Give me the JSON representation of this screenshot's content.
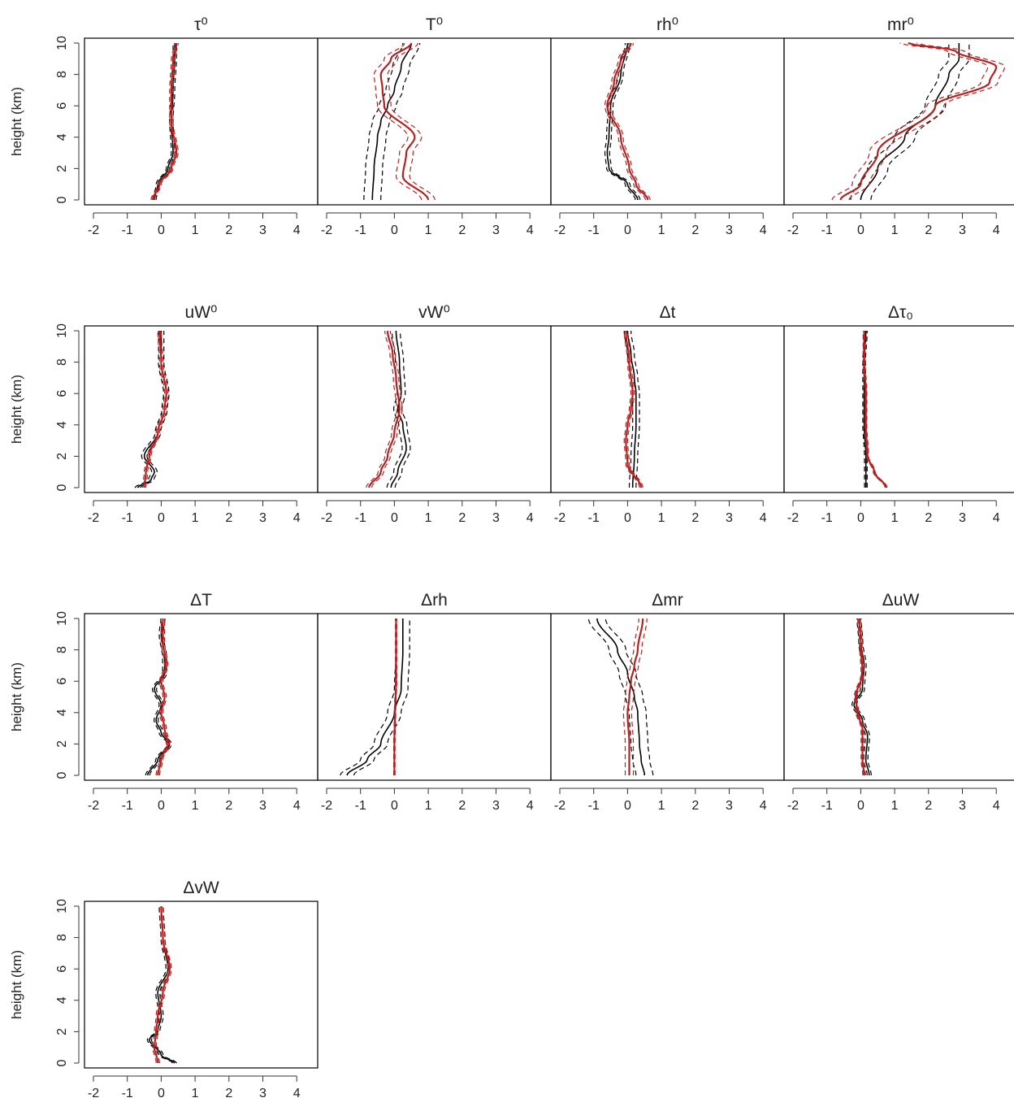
{
  "figure": {
    "ylabel": "height (km)",
    "x_tick_labels": [
      "-2",
      "-1",
      "0",
      "1",
      "2",
      "3",
      "4"
    ],
    "y_tick_labels": [
      "0",
      "2",
      "4",
      "6",
      "8",
      "10"
    ]
  },
  "colors": {
    "model_a": "#000000",
    "model_b": "#b22222",
    "frame": "#000000"
  },
  "chart_data": [
    {
      "type": "line",
      "title": "τ⁰",
      "xlim": [
        -2,
        4.5
      ],
      "ylim": [
        0,
        10
      ],
      "series": [
        {
          "color": "black",
          "x": [
            -0.2,
            -0.1,
            0.2,
            0.35,
            0.3,
            0.35,
            0.4,
            0.4
          ],
          "y": [
            0,
            1,
            2,
            3,
            5,
            7,
            9,
            10
          ],
          "band": 0.05
        },
        {
          "color": "red",
          "x": [
            -0.25,
            -0.05,
            0.3,
            0.45,
            0.3,
            0.3,
            0.35,
            0.45
          ],
          "y": [
            0,
            1,
            2,
            3,
            5,
            7,
            9,
            10
          ],
          "band": 0.05
        }
      ]
    },
    {
      "type": "line",
      "title": "T⁰",
      "xlim": [
        -2,
        4.5
      ],
      "ylim": [
        0,
        10
      ],
      "series": [
        {
          "color": "black",
          "x": [
            -0.65,
            -0.6,
            -0.5,
            -0.4,
            -0.2,
            0.0,
            0.2,
            0.5
          ],
          "y": [
            0,
            2,
            4,
            5,
            6,
            7,
            8.5,
            10
          ],
          "band": 0.25
        },
        {
          "color": "red",
          "x": [
            1.0,
            0.25,
            0.35,
            0.6,
            -0.3,
            -0.35,
            -0.4,
            -0.1,
            0.5
          ],
          "y": [
            0,
            1.5,
            3,
            4,
            6,
            7,
            8,
            9,
            10
          ],
          "band": 0.2
        }
      ]
    },
    {
      "type": "line",
      "title": "rh⁰",
      "xlim": [
        -2,
        4.5
      ],
      "ylim": [
        0,
        10
      ],
      "series": [
        {
          "color": "black",
          "x": [
            0.3,
            0.0,
            -0.55,
            -0.6,
            -0.55,
            -0.5,
            -0.2,
            0.0
          ],
          "y": [
            0,
            1,
            2,
            3,
            4,
            6,
            8,
            10
          ],
          "band": 0.07
        },
        {
          "color": "red",
          "x": [
            0.6,
            0.25,
            0.05,
            -0.2,
            -0.6,
            -0.4,
            -0.2,
            0.1
          ],
          "y": [
            0,
            1,
            2,
            4,
            6,
            7.5,
            9,
            10
          ],
          "band": 0.07
        }
      ]
    },
    {
      "type": "line",
      "title": "mr⁰",
      "xlim": [
        -2,
        4.5
      ],
      "ylim": [
        0,
        10
      ],
      "series": [
        {
          "color": "black",
          "x": [
            0.0,
            0.5,
            1.3,
            2.2,
            2.6,
            2.9,
            2.9
          ],
          "y": [
            0,
            2,
            4,
            6,
            8,
            9,
            10
          ],
          "band": 0.3
        },
        {
          "color": "red",
          "x": [
            -0.6,
            0.0,
            0.5,
            2.2,
            3.8,
            4.0,
            2.8,
            1.4
          ],
          "y": [
            0,
            1,
            3,
            6,
            7.5,
            8.5,
            9.5,
            10
          ],
          "band": 0.25
        }
      ]
    },
    {
      "type": "line",
      "title": "uW⁰",
      "xlim": [
        -2,
        4.5
      ],
      "ylim": [
        0,
        10
      ],
      "series": [
        {
          "color": "black",
          "x": [
            -0.7,
            -0.3,
            -0.2,
            -0.5,
            -0.1,
            0.1,
            0.15,
            0.0,
            0.0
          ],
          "y": [
            0,
            0.5,
            1,
            2,
            3.5,
            5,
            6,
            8,
            10
          ],
          "band": 0.08
        },
        {
          "color": "red",
          "x": [
            -0.5,
            -0.45,
            -0.35,
            -0.1,
            0.1,
            0.15,
            0.0,
            -0.05
          ],
          "y": [
            0,
            1,
            2,
            3.5,
            5,
            6,
            8,
            10
          ],
          "band": 0.05
        }
      ]
    },
    {
      "type": "line",
      "title": "vW⁰",
      "xlim": [
        -2,
        4.5
      ],
      "ylim": [
        0,
        10
      ],
      "series": [
        {
          "color": "black",
          "x": [
            -0.1,
            0.1,
            0.35,
            0.25,
            0.1,
            0.2,
            0.15,
            0.05
          ],
          "y": [
            0,
            1,
            2.5,
            4,
            5,
            6,
            8,
            10
          ],
          "band": 0.12
        },
        {
          "color": "red",
          "x": [
            -0.75,
            -0.4,
            -0.2,
            0.0,
            0.15,
            0.05,
            -0.05,
            -0.2
          ],
          "y": [
            0,
            1,
            2,
            3.5,
            5,
            7,
            8.5,
            10
          ],
          "band": 0.08
        }
      ]
    },
    {
      "type": "line",
      "title": "Δt",
      "xlim": [
        -2,
        4.5
      ],
      "ylim": [
        0,
        10
      ],
      "series": [
        {
          "color": "black",
          "x": [
            0.15,
            0.2,
            0.25,
            0.25,
            0.2,
            0.1,
            0.0
          ],
          "y": [
            0,
            2,
            4,
            6,
            7,
            8.5,
            10
          ],
          "band": 0.1
        },
        {
          "color": "red",
          "x": [
            0.4,
            0.0,
            -0.05,
            0.0,
            0.1,
            0.15,
            0.05,
            -0.05
          ],
          "y": [
            0,
            1.5,
            3,
            4,
            5,
            6,
            8,
            10
          ],
          "band": 0.05
        }
      ]
    },
    {
      "type": "line",
      "title": "Δτ₀",
      "xlim": [
        -2,
        4.5
      ],
      "ylim": [
        0,
        10
      ],
      "series": [
        {
          "color": "black",
          "x": [
            0.15,
            0.15,
            0.1,
            0.1,
            0.1,
            0.15
          ],
          "y": [
            0,
            2,
            4,
            6,
            8,
            10
          ],
          "band": 0.04
        },
        {
          "color": "red",
          "x": [
            0.75,
            0.4,
            0.2,
            0.15,
            0.15,
            0.1,
            0.1
          ],
          "y": [
            0,
            1,
            2,
            4,
            6,
            8,
            10
          ],
          "band": 0.03
        }
      ]
    },
    {
      "type": "line",
      "title": "ΔT",
      "xlim": [
        -2,
        4.5
      ],
      "ylim": [
        0,
        10
      ],
      "series": [
        {
          "color": "black",
          "x": [
            -0.4,
            -0.1,
            0.25,
            0.0,
            -0.15,
            0.0,
            -0.2,
            0.1,
            0.1,
            0.0,
            0.05
          ],
          "y": [
            0,
            1,
            2,
            2.7,
            3.5,
            4.5,
            5.5,
            6.5,
            7.5,
            9,
            10
          ],
          "band": 0.06
        },
        {
          "color": "red",
          "x": [
            -0.1,
            0.0,
            0.2,
            0.1,
            0.0,
            0.1,
            0.0,
            0.15,
            0.05,
            0.05
          ],
          "y": [
            0,
            1,
            2,
            3,
            4,
            5,
            6,
            7,
            8.5,
            10
          ],
          "band": 0.05
        }
      ]
    },
    {
      "type": "line",
      "title": "Δrh",
      "xlim": [
        -2,
        4.5
      ],
      "ylim": [
        0,
        10
      ],
      "series": [
        {
          "color": "black",
          "x": [
            -1.4,
            -0.8,
            -0.4,
            0.0,
            0.2,
            0.25,
            0.25
          ],
          "y": [
            0,
            1,
            2,
            4,
            5.5,
            8,
            10
          ],
          "band": 0.2
        },
        {
          "color": "red",
          "x": [
            0.0,
            0.0,
            0.02,
            0.05,
            0.05,
            0.05
          ],
          "y": [
            0,
            2,
            4,
            6,
            8,
            10
          ],
          "band": 0.02
        }
      ]
    },
    {
      "type": "line",
      "title": "Δmr",
      "xlim": [
        -2,
        4.5
      ],
      "ylim": [
        0,
        10
      ],
      "series": [
        {
          "color": "black",
          "x": [
            0.5,
            0.4,
            0.35,
            0.3,
            0.2,
            0.0,
            -0.3,
            -0.9
          ],
          "y": [
            0,
            1,
            2,
            4,
            5,
            6.5,
            8,
            10
          ],
          "band": 0.25
        },
        {
          "color": "red",
          "x": [
            0.05,
            0.05,
            0.0,
            0.05,
            0.1,
            0.2,
            0.3,
            0.45
          ],
          "y": [
            0,
            2,
            4,
            5,
            6,
            7,
            8,
            10
          ],
          "band": 0.12
        }
      ]
    },
    {
      "type": "line",
      "title": "ΔuW",
      "xlim": [
        -2,
        4.5
      ],
      "ylim": [
        0,
        10
      ],
      "series": [
        {
          "color": "black",
          "x": [
            0.25,
            0.15,
            0.2,
            0.05,
            -0.2,
            0.05,
            0.1,
            0.0,
            -0.05
          ],
          "y": [
            0,
            1,
            2.5,
            3.5,
            4.5,
            5.5,
            7,
            8.5,
            10
          ],
          "band": 0.06
        },
        {
          "color": "red",
          "x": [
            0.1,
            0.05,
            0.05,
            -0.1,
            -0.15,
            0.05,
            0.0,
            -0.05
          ],
          "y": [
            0,
            1,
            3,
            4,
            5,
            6.5,
            8.5,
            10
          ],
          "band": 0.04
        }
      ]
    },
    {
      "type": "line",
      "title": "ΔvW",
      "xlim": [
        -2,
        4.5
      ],
      "ylim": [
        0,
        10
      ],
      "series": [
        {
          "color": "black",
          "x": [
            0.4,
            0.0,
            -0.35,
            -0.1,
            0.0,
            -0.1,
            0.2,
            0.05,
            0.0
          ],
          "y": [
            0,
            0.5,
            1.5,
            2,
            3,
            4.5,
            6,
            8,
            10
          ],
          "band": 0.06
        },
        {
          "color": "red",
          "x": [
            -0.1,
            -0.2,
            -0.15,
            -0.1,
            0.05,
            0.25,
            0.05,
            0.0
          ],
          "y": [
            0,
            1,
            2,
            3,
            4.5,
            6,
            8,
            10
          ],
          "band": 0.05
        }
      ]
    }
  ]
}
